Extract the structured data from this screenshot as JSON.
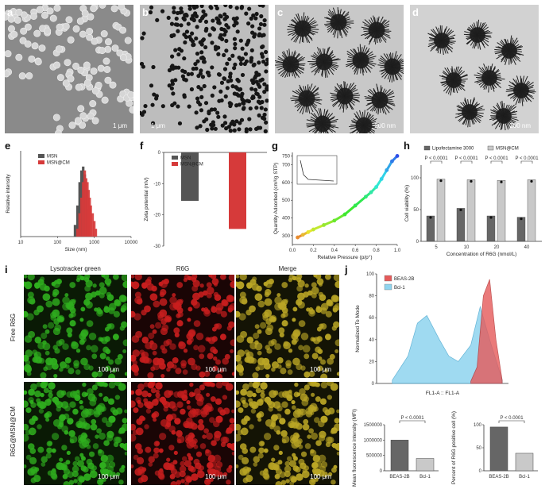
{
  "colors": {
    "sem_bg": "#8a8a8a",
    "tem_bg": "#c8c8c8",
    "msn_dark": "#555555",
    "red_series": "#d63a3a",
    "fluor_green": "#2fae1e",
    "fluor_red": "#c81e1e",
    "fluor_merge": "#b9a525",
    "flow_red": "#e55a5a",
    "flow_blue": "#8fd4ef",
    "bar_dark": "#666666",
    "bar_light": "#c9c9c9"
  },
  "panels": {
    "a": {
      "label": "a",
      "scale": "1 μm"
    },
    "b": {
      "label": "b",
      "scale": "1 μm"
    },
    "c": {
      "label": "c",
      "scale": "200 nm"
    },
    "d": {
      "label": "d",
      "scale": "200 nm"
    },
    "e": {
      "label": "e"
    },
    "f": {
      "label": "f"
    },
    "g": {
      "label": "g"
    },
    "h": {
      "label": "h"
    },
    "i": {
      "label": "i",
      "col_titles": [
        "Lysotracker green",
        "R6G",
        "Merge"
      ],
      "row_titles": [
        "Free R6G",
        "R6G@MSN@CM"
      ],
      "scale": "100 μm"
    },
    "j": {
      "label": "j"
    }
  },
  "chart_data": [
    {
      "id": "e",
      "type": "bar",
      "xlabel": "Size (nm)",
      "ylabel": "Relative intensity",
      "xscale": "log",
      "xlim": [
        10,
        10000
      ],
      "xticks": [
        "10",
        "100",
        "1000",
        "10000"
      ],
      "legend": {
        "placement": "top-left"
      },
      "series": [
        {
          "name": "MSN",
          "x": [
            300,
            350,
            400,
            450,
            500,
            550,
            600,
            650,
            700,
            750
          ],
          "values": [
            0.15,
            0.4,
            0.7,
            0.85,
            0.9,
            0.8,
            0.6,
            0.35,
            0.15,
            0.05
          ]
        },
        {
          "name": "MSN@CM",
          "x": [
            350,
            400,
            450,
            500,
            550,
            600,
            650,
            700,
            750,
            800,
            900,
            1000,
            1100
          ],
          "values": [
            0.1,
            0.3,
            0.5,
            0.7,
            0.85,
            0.75,
            0.7,
            0.6,
            0.5,
            0.4,
            0.3,
            0.2,
            0.1
          ]
        }
      ]
    },
    {
      "id": "f",
      "type": "bar",
      "ylabel": "Zeta potential (mV)",
      "ylim": [
        -30,
        0
      ],
      "yticks": [
        "0",
        "-10",
        "-20",
        "-30"
      ],
      "legend": {
        "placement": "top-left"
      },
      "series": [
        {
          "name": "MSN",
          "values": [
            -15.5
          ]
        },
        {
          "name": "MSN@CM",
          "values": [
            -24.5
          ]
        }
      ]
    },
    {
      "id": "g",
      "type": "line",
      "xlabel": "Relative Pressure (p/p°)",
      "ylabel": "Quantity Adsorbed (cm³/g STP)",
      "xlim": [
        0.0,
        1.0
      ],
      "xticks": [
        "0.0",
        "0.2",
        "0.4",
        "0.6",
        "0.8",
        "1.0"
      ],
      "yticks": [
        "300",
        "400",
        "500",
        "600",
        "700",
        "750"
      ],
      "x": [
        0.05,
        0.1,
        0.15,
        0.2,
        0.3,
        0.4,
        0.5,
        0.6,
        0.7,
        0.75,
        0.8,
        0.85,
        0.9,
        0.95,
        1.0
      ],
      "values": [
        290,
        305,
        320,
        335,
        360,
        385,
        420,
        470,
        520,
        545,
        575,
        620,
        670,
        720,
        750
      ],
      "inset": {
        "type": "line",
        "description": ""
      }
    },
    {
      "id": "h",
      "type": "bar",
      "xlabel": "Concentration of R6G (nmol/L)",
      "ylabel": "Cell viability (%)",
      "ylim": [
        0,
        120
      ],
      "yticks": [
        "0",
        "50",
        "100"
      ],
      "categories": [
        "5",
        "10",
        "20",
        "40"
      ],
      "legend": {
        "placement": "top"
      },
      "significance": [
        "P < 0.0001",
        "P < 0.0001",
        "P < 0.0001",
        "P < 0.0001"
      ],
      "series": [
        {
          "name": "Lipofectamine 3000",
          "values": [
            40,
            52,
            40,
            38
          ]
        },
        {
          "name": "MSN@CM",
          "values": [
            98,
            97,
            96,
            97
          ]
        }
      ]
    },
    {
      "id": "j1",
      "type": "area",
      "xlabel": "FL1-A :: FL1-A",
      "ylabel": "Normalized To Mode",
      "xscale": "log",
      "yticks": [
        "0",
        "20",
        "40",
        "60",
        "80",
        "100"
      ],
      "legend": {
        "placement": "top-right"
      },
      "series": [
        {
          "name": "BEAS-2B",
          "x": [
            4.0,
            4.2,
            4.4,
            4.6,
            4.8,
            5.0
          ],
          "values": [
            2,
            15,
            80,
            95,
            40,
            3
          ]
        },
        {
          "name": "Bcl-1",
          "x": [
            1.5,
            2.0,
            2.3,
            2.6,
            3.0,
            3.3,
            3.6,
            4.0,
            4.3,
            4.6,
            5.0
          ],
          "values": [
            3,
            25,
            55,
            62,
            40,
            25,
            20,
            35,
            70,
            40,
            3
          ]
        }
      ]
    },
    {
      "id": "j2",
      "type": "bar",
      "ylabel": "Mean fluorescence intensity (MFI)",
      "categories": [
        "BEAS-2B",
        "Bcl-1"
      ],
      "yticks": [
        "0",
        "500000",
        "1000000",
        "1500000"
      ],
      "ylim": [
        0,
        1500000
      ],
      "values": [
        1000000,
        400000
      ],
      "significance": "P < 0.0001"
    },
    {
      "id": "j3",
      "type": "bar",
      "ylabel": "Percent of R6G positive cell (%)",
      "categories": [
        "BEAS-2B",
        "Bcl-1"
      ],
      "yticks": [
        "0",
        "50",
        "100"
      ],
      "ylim": [
        0,
        100
      ],
      "values": [
        95,
        38
      ],
      "significance": "P < 0.0001"
    }
  ]
}
